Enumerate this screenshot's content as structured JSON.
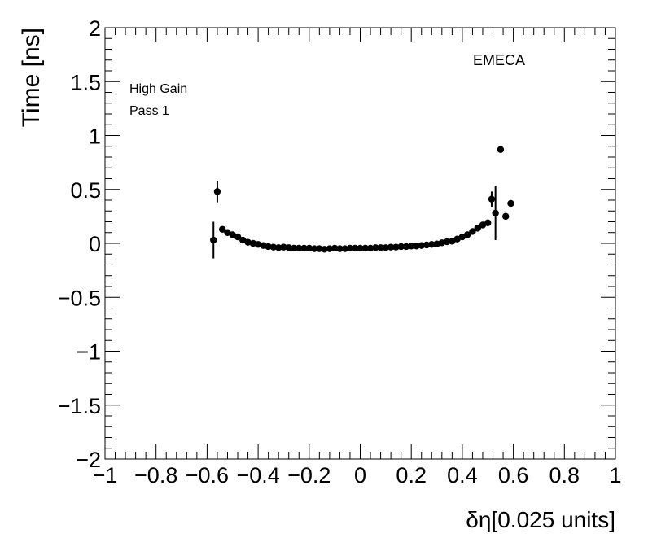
{
  "chart_data": {
    "type": "scatter",
    "title": "",
    "xlabel": "δη[0.025 units]",
    "ylabel": "Time [ns]",
    "xlim": [
      -1,
      1
    ],
    "ylim": [
      -2,
      2
    ],
    "x_ticks": [
      -1,
      -0.8,
      -0.6,
      -0.4,
      -0.2,
      0,
      0.2,
      0.4,
      0.6,
      0.8,
      1
    ],
    "x_tick_labels": [
      "−1",
      "−0.8",
      "−0.6",
      "−0.4",
      "−0.2",
      "0",
      "0.2",
      "0.4",
      "0.6",
      "0.8",
      "1"
    ],
    "y_ticks": [
      -2,
      -1.5,
      -1,
      -0.5,
      0,
      0.5,
      1,
      1.5,
      2
    ],
    "y_tick_labels": [
      "−2",
      "−1.5",
      "−1",
      "−0.5",
      "0",
      "0.5",
      "1",
      "1.5",
      "2"
    ],
    "grid": false,
    "annotations": {
      "detector": "EMECA",
      "gain": "High Gain",
      "pass": "Pass 1"
    },
    "series": [
      {
        "marker_color": "#000000",
        "points": [
          {
            "x": -0.575,
            "y": 0.03,
            "err": 0.17
          },
          {
            "x": -0.56,
            "y": 0.48,
            "err": 0.1
          },
          {
            "x": -0.54,
            "y": 0.13,
            "err": 0.02
          },
          {
            "x": -0.52,
            "y": 0.1,
            "err": 0.015
          },
          {
            "x": -0.5,
            "y": 0.08,
            "err": 0.01
          },
          {
            "x": -0.48,
            "y": 0.06,
            "err": 0.01
          },
          {
            "x": -0.46,
            "y": 0.03,
            "err": 0.01
          },
          {
            "x": -0.44,
            "y": 0.01,
            "err": 0.008
          },
          {
            "x": -0.42,
            "y": 0.0,
            "err": 0.008
          },
          {
            "x": -0.4,
            "y": -0.01,
            "err": 0.006
          },
          {
            "x": -0.38,
            "y": -0.02,
            "err": 0.006
          },
          {
            "x": -0.36,
            "y": -0.03,
            "err": 0.005
          },
          {
            "x": -0.34,
            "y": -0.035,
            "err": 0.005
          },
          {
            "x": -0.32,
            "y": -0.04,
            "err": 0.005
          },
          {
            "x": -0.3,
            "y": -0.035,
            "err": 0.005
          },
          {
            "x": -0.28,
            "y": -0.04,
            "err": 0.005
          },
          {
            "x": -0.26,
            "y": -0.045,
            "err": 0.005
          },
          {
            "x": -0.24,
            "y": -0.045,
            "err": 0.005
          },
          {
            "x": -0.22,
            "y": -0.045,
            "err": 0.005
          },
          {
            "x": -0.2,
            "y": -0.045,
            "err": 0.005
          },
          {
            "x": -0.18,
            "y": -0.05,
            "err": 0.005
          },
          {
            "x": -0.16,
            "y": -0.05,
            "err": 0.005
          },
          {
            "x": -0.14,
            "y": -0.055,
            "err": 0.005
          },
          {
            "x": -0.12,
            "y": -0.05,
            "err": 0.005
          },
          {
            "x": -0.1,
            "y": -0.045,
            "err": 0.005
          },
          {
            "x": -0.08,
            "y": -0.05,
            "err": 0.005
          },
          {
            "x": -0.06,
            "y": -0.05,
            "err": 0.005
          },
          {
            "x": -0.04,
            "y": -0.045,
            "err": 0.005
          },
          {
            "x": -0.02,
            "y": -0.045,
            "err": 0.005
          },
          {
            "x": 0.0,
            "y": -0.045,
            "err": 0.005
          },
          {
            "x": 0.02,
            "y": -0.045,
            "err": 0.005
          },
          {
            "x": 0.04,
            "y": -0.045,
            "err": 0.005
          },
          {
            "x": 0.06,
            "y": -0.04,
            "err": 0.005
          },
          {
            "x": 0.08,
            "y": -0.04,
            "err": 0.005
          },
          {
            "x": 0.1,
            "y": -0.04,
            "err": 0.005
          },
          {
            "x": 0.12,
            "y": -0.035,
            "err": 0.005
          },
          {
            "x": 0.14,
            "y": -0.035,
            "err": 0.005
          },
          {
            "x": 0.16,
            "y": -0.03,
            "err": 0.005
          },
          {
            "x": 0.18,
            "y": -0.03,
            "err": 0.005
          },
          {
            "x": 0.2,
            "y": -0.025,
            "err": 0.005
          },
          {
            "x": 0.22,
            "y": -0.025,
            "err": 0.005
          },
          {
            "x": 0.24,
            "y": -0.02,
            "err": 0.005
          },
          {
            "x": 0.26,
            "y": -0.015,
            "err": 0.005
          },
          {
            "x": 0.28,
            "y": -0.01,
            "err": 0.005
          },
          {
            "x": 0.3,
            "y": -0.005,
            "err": 0.005
          },
          {
            "x": 0.32,
            "y": 0.005,
            "err": 0.006
          },
          {
            "x": 0.34,
            "y": 0.015,
            "err": 0.006
          },
          {
            "x": 0.36,
            "y": 0.02,
            "err": 0.007
          },
          {
            "x": 0.38,
            "y": 0.04,
            "err": 0.008
          },
          {
            "x": 0.4,
            "y": 0.06,
            "err": 0.01
          },
          {
            "x": 0.42,
            "y": 0.08,
            "err": 0.01
          },
          {
            "x": 0.44,
            "y": 0.11,
            "err": 0.012
          },
          {
            "x": 0.46,
            "y": 0.14,
            "err": 0.015
          },
          {
            "x": 0.48,
            "y": 0.17,
            "err": 0.015
          },
          {
            "x": 0.5,
            "y": 0.19,
            "err": 0.02
          },
          {
            "x": 0.515,
            "y": 0.41,
            "err": 0.07
          },
          {
            "x": 0.53,
            "y": 0.28,
            "err": 0.25
          },
          {
            "x": 0.55,
            "y": 0.87,
            "err": 0.02
          },
          {
            "x": 0.57,
            "y": 0.25,
            "err": 0.02
          },
          {
            "x": 0.59,
            "y": 0.37,
            "err": 0.03
          }
        ]
      }
    ]
  }
}
